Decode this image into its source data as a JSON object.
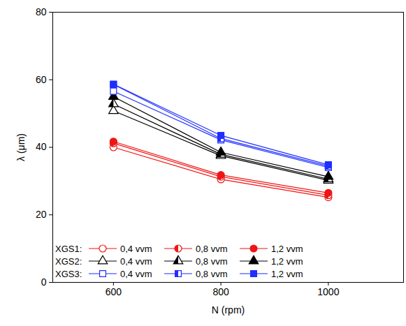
{
  "chart_data": {
    "type": "line",
    "x_label": "N (rpm)",
    "y_label": "λ (μm)",
    "x": [
      600,
      800,
      1000
    ],
    "xlim": [
      487,
      1140
    ],
    "xticks": [
      600,
      800,
      1000
    ],
    "ylim": [
      0,
      80
    ],
    "yticks": [
      0,
      20,
      40,
      60,
      80
    ],
    "legend": "lower left",
    "series": [
      {
        "group": "XGS1:",
        "name": "0,4 vvm",
        "color": "#f01515",
        "marker": "open-circle",
        "values": [
          40.0,
          30.5,
          25.2
        ]
      },
      {
        "group": "XGS1:",
        "name": "0,8 vvm",
        "color": "#f01515",
        "marker": "half-circle",
        "values": [
          41.2,
          31.3,
          25.8
        ]
      },
      {
        "group": "XGS1:",
        "name": "1,2 vvm",
        "color": "#f01515",
        "marker": "filled-circle",
        "values": [
          41.7,
          31.8,
          26.5
        ]
      },
      {
        "group": "XGS2:",
        "name": "0,4 vvm",
        "color": "#000000",
        "marker": "open-triangle",
        "values": [
          50.8,
          37.5,
          30.2
        ]
      },
      {
        "group": "XGS2:",
        "name": "0,8 vvm",
        "color": "#000000",
        "marker": "half-triangle",
        "values": [
          52.8,
          37.9,
          30.6
        ]
      },
      {
        "group": "XGS2:",
        "name": "1,2 vvm",
        "color": "#000000",
        "marker": "filled-triangle",
        "values": [
          55.0,
          38.5,
          31.3
        ]
      },
      {
        "group": "XGS3:",
        "name": "0,4 vvm",
        "color": "#1f2fff",
        "marker": "open-square",
        "values": [
          56.6,
          42.2,
          34.0
        ]
      },
      {
        "group": "XGS3:",
        "name": "0,8 vvm",
        "color": "#1f2fff",
        "marker": "half-square",
        "values": [
          58.6,
          42.6,
          34.4
        ]
      },
      {
        "group": "XGS3:",
        "name": "1,2 vvm",
        "color": "#1f2fff",
        "marker": "filled-square",
        "values": [
          58.7,
          43.5,
          34.8
        ]
      }
    ]
  }
}
